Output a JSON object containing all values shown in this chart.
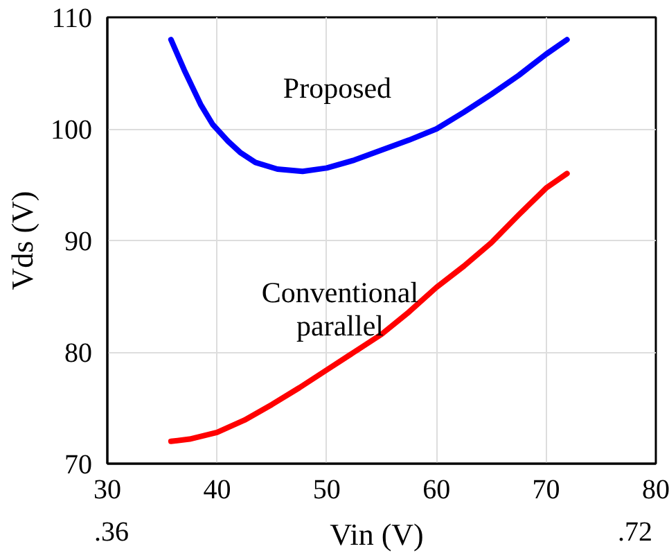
{
  "chart_data": {
    "type": "line",
    "xlabel": "Vin (V)",
    "ylabel": "Vds (V)",
    "xlim": [
      30,
      80
    ],
    "ylim": [
      70,
      110
    ],
    "xticks": [
      30,
      40,
      50,
      60,
      70,
      80
    ],
    "yticks": [
      70,
      80,
      90,
      100,
      110
    ],
    "grid": true,
    "legend": false,
    "marker": "none",
    "line_style": "solid",
    "annotations": [
      ".36",
      ".72"
    ],
    "series": [
      {
        "name": "Proposed",
        "color": "#0000ff",
        "x": [
          35.8,
          37,
          38.5,
          39.6,
          41,
          42.1,
          43.5,
          45.5,
          47.8,
          50,
          52.5,
          55,
          57.5,
          60,
          62.5,
          65,
          67.5,
          70,
          71.9
        ],
        "values": [
          108,
          105.3,
          102.2,
          100.4,
          98.9,
          97.9,
          97.0,
          96.4,
          96.2,
          96.5,
          97.2,
          98.1,
          99.0,
          100,
          101.5,
          103.1,
          104.8,
          106.7,
          108
        ]
      },
      {
        "name": "Conventional parallel",
        "color": "#ff0000",
        "x": [
          35.8,
          37.5,
          40,
          42.5,
          45,
          47.5,
          50,
          52.5,
          55,
          57.5,
          60,
          62.5,
          65,
          67.5,
          70,
          71.9
        ],
        "values": [
          72,
          72.2,
          72.8,
          73.9,
          75.3,
          76.8,
          78.4,
          80.0,
          81.6,
          83.6,
          85.8,
          87.7,
          89.8,
          92.3,
          94.7,
          96
        ]
      }
    ]
  }
}
